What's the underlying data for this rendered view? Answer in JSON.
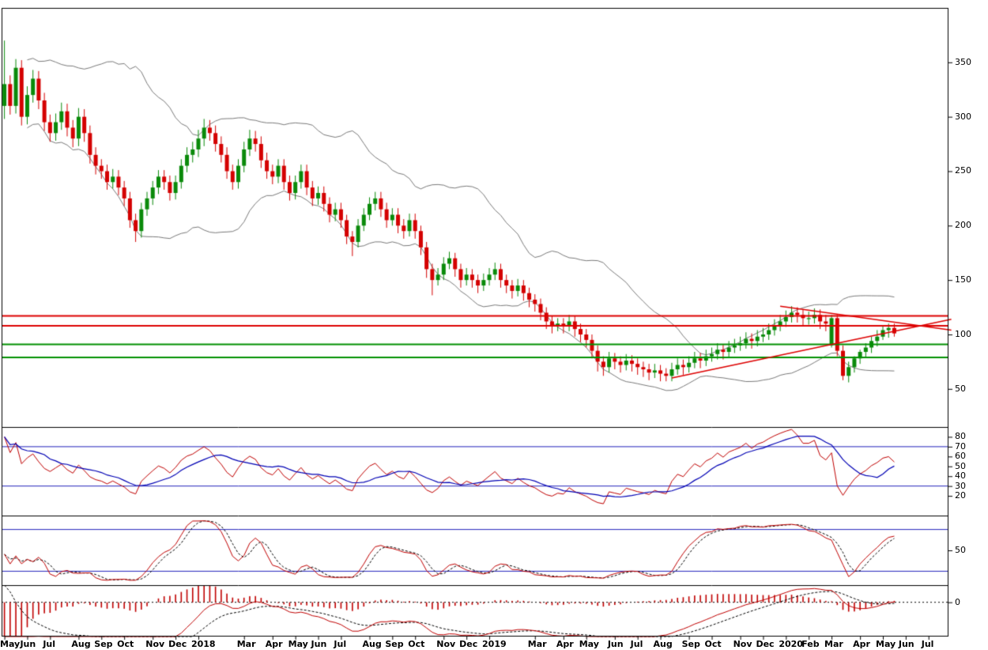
{
  "window": {
    "background": "#ffffff"
  },
  "chart_data": {
    "type": "candlestick",
    "description": "Weekly stock candlestick chart (May 2017 - Jul 2020) with Bollinger Bands, horizontal support/resistance lines, converging red trend lines, RSI panel, stochastic panel and MACD histogram panel",
    "frequency": "weekly",
    "axis": {
      "total_weeks": 166
    },
    "x_ticks": [
      {
        "label": "May",
        "week": 0
      },
      {
        "label": "Jun",
        "week": 4
      },
      {
        "label": "Jul",
        "week": 8
      },
      {
        "label": "Aug",
        "week": 13
      },
      {
        "label": "Sep",
        "week": 17
      },
      {
        "label": "Oct",
        "week": 21
      },
      {
        "label": "Nov",
        "week": 26
      },
      {
        "label": "Dec",
        "week": 30
      },
      {
        "label": "2018",
        "week": 34
      },
      {
        "label": "Mar",
        "week": 42
      },
      {
        "label": "Apr",
        "week": 47
      },
      {
        "label": "May",
        "week": 51
      },
      {
        "label": "Jun",
        "week": 55
      },
      {
        "label": "Jul",
        "week": 59
      },
      {
        "label": "Aug",
        "week": 64
      },
      {
        "label": "Sep",
        "week": 68
      },
      {
        "label": "Oct",
        "week": 72
      },
      {
        "label": "Nov",
        "week": 77
      },
      {
        "label": "Dec",
        "week": 81
      },
      {
        "label": "2019",
        "week": 85
      },
      {
        "label": "Mar",
        "week": 93
      },
      {
        "label": "Apr",
        "week": 98
      },
      {
        "label": "May",
        "week": 102
      },
      {
        "label": "Jun",
        "week": 107
      },
      {
        "label": "Jul",
        "week": 111
      },
      {
        "label": "Aug",
        "week": 115
      },
      {
        "label": "Sep",
        "week": 120
      },
      {
        "label": "Oct",
        "week": 124
      },
      {
        "label": "Nov",
        "week": 129
      },
      {
        "label": "Dec",
        "week": 133
      },
      {
        "label": "2020",
        "week": 137
      },
      {
        "label": "Feb",
        "week": 141
      },
      {
        "label": "Mar",
        "week": 145
      },
      {
        "label": "Apr",
        "week": 150
      },
      {
        "label": "May",
        "week": 154
      },
      {
        "label": "Jun",
        "week": 158
      },
      {
        "label": "Jul",
        "week": 162
      }
    ],
    "y_axis": {
      "range": [
        15,
        400
      ],
      "ticks": [
        350,
        300,
        250,
        200,
        150,
        100,
        50
      ]
    },
    "candles": [
      [
        310,
        370,
        298,
        330
      ],
      [
        330,
        338,
        302,
        310
      ],
      [
        310,
        353,
        303,
        345
      ],
      [
        345,
        352,
        292,
        300
      ],
      [
        300,
        328,
        293,
        320
      ],
      [
        320,
        343,
        313,
        335
      ],
      [
        335,
        342,
        307,
        315
      ],
      [
        315,
        322,
        287,
        295
      ],
      [
        295,
        302,
        277,
        285
      ],
      [
        285,
        303,
        278,
        295
      ],
      [
        295,
        313,
        288,
        305
      ],
      [
        305,
        312,
        282,
        290
      ],
      [
        290,
        297,
        272,
        280
      ],
      [
        280,
        308,
        273,
        300
      ],
      [
        300,
        307,
        277,
        285
      ],
      [
        285,
        292,
        257,
        265
      ],
      [
        265,
        272,
        247,
        255
      ],
      [
        255,
        261,
        243,
        250
      ],
      [
        250,
        256,
        233,
        240
      ],
      [
        240,
        252,
        234,
        245
      ],
      [
        245,
        251,
        228,
        235
      ],
      [
        235,
        241,
        218,
        225
      ],
      [
        225,
        231,
        198,
        205
      ],
      [
        205,
        211,
        185,
        195
      ],
      [
        195,
        221,
        189,
        215
      ],
      [
        215,
        231,
        209,
        225
      ],
      [
        225,
        241,
        219,
        235
      ],
      [
        235,
        251,
        229,
        245
      ],
      [
        245,
        251,
        233,
        240
      ],
      [
        240,
        246,
        223,
        230
      ],
      [
        230,
        246,
        224,
        240
      ],
      [
        240,
        261,
        234,
        255
      ],
      [
        255,
        272,
        249,
        265
      ],
      [
        265,
        277,
        258,
        270
      ],
      [
        270,
        288,
        263,
        280
      ],
      [
        280,
        298,
        273,
        290
      ],
      [
        290,
        297,
        278,
        285
      ],
      [
        285,
        292,
        268,
        275
      ],
      [
        275,
        282,
        258,
        265
      ],
      [
        265,
        272,
        243,
        250
      ],
      [
        250,
        256,
        233,
        240
      ],
      [
        240,
        261,
        234,
        255
      ],
      [
        255,
        277,
        249,
        270
      ],
      [
        270,
        288,
        264,
        280
      ],
      [
        280,
        287,
        268,
        275
      ],
      [
        275,
        282,
        253,
        260
      ],
      [
        260,
        267,
        243,
        250
      ],
      [
        250,
        256,
        238,
        245
      ],
      [
        245,
        261,
        239,
        255
      ],
      [
        255,
        261,
        233,
        240
      ],
      [
        240,
        246,
        223,
        230
      ],
      [
        230,
        246,
        224,
        240
      ],
      [
        240,
        256,
        234,
        250
      ],
      [
        250,
        256,
        228,
        235
      ],
      [
        235,
        241,
        218,
        225
      ],
      [
        225,
        236,
        219,
        230
      ],
      [
        230,
        236,
        213,
        220
      ],
      [
        220,
        226,
        203,
        210
      ],
      [
        210,
        221,
        204,
        215
      ],
      [
        215,
        221,
        198,
        205
      ],
      [
        205,
        210,
        183,
        190
      ],
      [
        190,
        195,
        172,
        185
      ],
      [
        185,
        206,
        180,
        200
      ],
      [
        200,
        216,
        195,
        210
      ],
      [
        210,
        226,
        205,
        220
      ],
      [
        220,
        231,
        214,
        225
      ],
      [
        225,
        231,
        208,
        215
      ],
      [
        215,
        221,
        198,
        205
      ],
      [
        205,
        216,
        200,
        210
      ],
      [
        210,
        216,
        193,
        200
      ],
      [
        200,
        206,
        188,
        195
      ],
      [
        195,
        211,
        190,
        205
      ],
      [
        205,
        211,
        188,
        195
      ],
      [
        195,
        200,
        173,
        180
      ],
      [
        180,
        185,
        152,
        160
      ],
      [
        160,
        165,
        136,
        150
      ],
      [
        150,
        161,
        145,
        155
      ],
      [
        155,
        171,
        150,
        165
      ],
      [
        165,
        176,
        160,
        170
      ],
      [
        170,
        175,
        153,
        160
      ],
      [
        160,
        165,
        143,
        150
      ],
      [
        150,
        161,
        145,
        155
      ],
      [
        155,
        160,
        143,
        150
      ],
      [
        150,
        155,
        138,
        145
      ],
      [
        145,
        156,
        140,
        150
      ],
      [
        150,
        161,
        145,
        155
      ],
      [
        155,
        166,
        150,
        160
      ],
      [
        160,
        165,
        143,
        150
      ],
      [
        150,
        155,
        138,
        145
      ],
      [
        145,
        150,
        133,
        140
      ],
      [
        140,
        151,
        135,
        145
      ],
      [
        145,
        150,
        131,
        138
      ],
      [
        138,
        143,
        125,
        132
      ],
      [
        132,
        137,
        121,
        128
      ],
      [
        128,
        133,
        113,
        120
      ],
      [
        120,
        125,
        105,
        112
      ],
      [
        112,
        117,
        101,
        108
      ],
      [
        108,
        115,
        103,
        110
      ],
      [
        110,
        115,
        101,
        108
      ],
      [
        108,
        118,
        103,
        112
      ],
      [
        112,
        117,
        98,
        105
      ],
      [
        105,
        110,
        93,
        100
      ],
      [
        100,
        105,
        88,
        95
      ],
      [
        95,
        100,
        78,
        85
      ],
      [
        85,
        90,
        66,
        75
      ],
      [
        75,
        80,
        62,
        70
      ],
      [
        70,
        84,
        65,
        78
      ],
      [
        78,
        83,
        68,
        75
      ],
      [
        75,
        80,
        65,
        72
      ],
      [
        72,
        82,
        67,
        76
      ],
      [
        76,
        81,
        66,
        73
      ],
      [
        73,
        78,
        63,
        70
      ],
      [
        70,
        75,
        61,
        68
      ],
      [
        68,
        73,
        58,
        65
      ],
      [
        65,
        73,
        60,
        67
      ],
      [
        67,
        72,
        57,
        64
      ],
      [
        64,
        69,
        57,
        62
      ],
      [
        62,
        74,
        57,
        68
      ],
      [
        68,
        78,
        63,
        72
      ],
      [
        72,
        77,
        63,
        70
      ],
      [
        70,
        80,
        65,
        74
      ],
      [
        74,
        84,
        69,
        78
      ],
      [
        78,
        83,
        69,
        76
      ],
      [
        76,
        86,
        71,
        80
      ],
      [
        80,
        88,
        75,
        82
      ],
      [
        82,
        92,
        77,
        86
      ],
      [
        86,
        91,
        77,
        84
      ],
      [
        84,
        94,
        79,
        88
      ],
      [
        88,
        96,
        83,
        90
      ],
      [
        90,
        98,
        85,
        92
      ],
      [
        92,
        102,
        87,
        96
      ],
      [
        96,
        101,
        87,
        94
      ],
      [
        94,
        104,
        89,
        98
      ],
      [
        98,
        106,
        93,
        100
      ],
      [
        100,
        110,
        95,
        104
      ],
      [
        104,
        114,
        99,
        108
      ],
      [
        108,
        118,
        103,
        112
      ],
      [
        112,
        122,
        107,
        116
      ],
      [
        116,
        126,
        111,
        120
      ],
      [
        120,
        125,
        111,
        118
      ],
      [
        118,
        123,
        108,
        115
      ],
      [
        115,
        121,
        109,
        115
      ],
      [
        115,
        124,
        110,
        118
      ],
      [
        118,
        123,
        105,
        112
      ],
      [
        112,
        118,
        103,
        110
      ],
      [
        90,
        118,
        88,
        115
      ],
      [
        115,
        118,
        80,
        85
      ],
      [
        85,
        90,
        58,
        62
      ],
      [
        62,
        75,
        56,
        70
      ],
      [
        70,
        80,
        65,
        78
      ],
      [
        78,
        86,
        73,
        84
      ],
      [
        84,
        92,
        79,
        88
      ],
      [
        88,
        98,
        83,
        94
      ],
      [
        94,
        104,
        89,
        98
      ],
      [
        98,
        108,
        95,
        104
      ],
      [
        104,
        110,
        97,
        106
      ],
      [
        106,
        110,
        98,
        101
      ]
    ],
    "overlays": {
      "bollinger": {
        "period": 20,
        "stddev": 2,
        "color": "#7a7a7a"
      },
      "horizontal_lines": [
        {
          "value": 117,
          "color": "#dd0000",
          "width": 2
        },
        {
          "value": 108,
          "color": "#dd0000",
          "width": 2
        },
        {
          "value": 91,
          "color": "#009000",
          "width": 2
        },
        {
          "value": 79,
          "color": "#009000",
          "width": 2
        }
      ],
      "trend_lines": [
        {
          "from": {
            "week": 117,
            "value": 60
          },
          "to": {
            "week": 166,
            "value": 114
          },
          "color": "#dd0000",
          "width": 1.5
        },
        {
          "from": {
            "week": 136,
            "value": 126
          },
          "to": {
            "week": 166,
            "value": 104
          },
          "color": "#dd0000",
          "width": 1.5
        }
      ]
    },
    "panels": {
      "rsi": {
        "range": [
          0,
          90
        ],
        "y_ticks": [
          80,
          70,
          60,
          50,
          40,
          30,
          20
        ],
        "levels": [
          {
            "value": 70,
            "color": "#2222bb"
          },
          {
            "value": 30,
            "color": "#2222bb"
          }
        ],
        "period": 9,
        "smooth": 8,
        "seed_gain": 8,
        "seed_loss": 2
      },
      "stochastic": {
        "range": [
          0,
          100
        ],
        "y_ticks": [
          50
        ],
        "levels": [
          {
            "value": 80,
            "color": "#2222bb"
          },
          {
            "value": 20,
            "color": "#2222bb"
          }
        ],
        "k_period": 14,
        "k_smooth": 3,
        "d_smooth": 3
      },
      "macd": {
        "range": [
          -20,
          10
        ],
        "y_ticks": [
          0
        ],
        "fast": 12,
        "slow": 26,
        "signal": 9,
        "seed_fast_offset": 0,
        "seed_slow_offset": 30,
        "seed_signal": 25
      }
    },
    "colors": {
      "up": "#0a8a0a",
      "down": "#d40000",
      "bollinger": "#7a7a7a",
      "rsi_fast": "#c00000",
      "rsi_slow": "#0000b4",
      "stoch_k": "#c00000",
      "stoch_d": "#000000",
      "macd_hist": "#c00000",
      "macd_line": "#c00000",
      "macd_signal": "#000000",
      "frame": "#000000",
      "axis_text": "#000000",
      "background": "#ffffff"
    }
  }
}
